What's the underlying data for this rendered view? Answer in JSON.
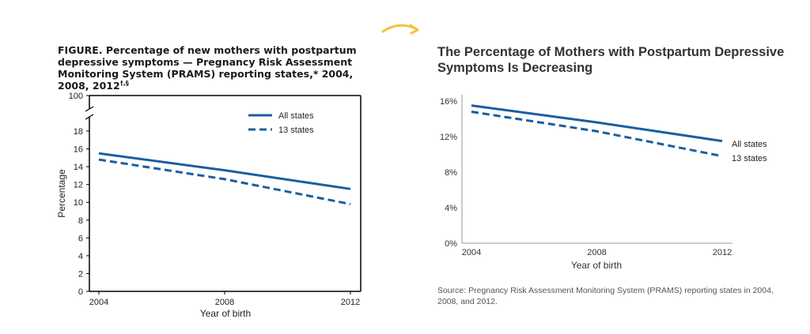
{
  "arrow_color": "#f5c242",
  "line_color": "#1a5fa0",
  "left": {
    "title_main": "FIGURE. Percentage of new mothers with postpartum depressive symptoms — Pregnancy Risk Assessment Monitoring System (PRAMS) reporting states,* 2004, 2008, 2012",
    "title_sup": "†,§",
    "ylabel": "Percentage",
    "xlabel": "Year of birth",
    "break_tick_label": "100",
    "y_tick_labels": [
      "0",
      "2",
      "4",
      "6",
      "8",
      "10",
      "12",
      "14",
      "16",
      "18"
    ],
    "x_tick_labels": [
      "2004",
      "2008",
      "2012"
    ],
    "legend": [
      "All states",
      "13 states"
    ]
  },
  "right": {
    "title": "The Percentage of Mothers with Postpartum Depressive Symptoms Is Decreasing",
    "xlabel": "Year of birth",
    "y_tick_labels": [
      "0%",
      "4%",
      "8%",
      "12%",
      "16%"
    ],
    "x_tick_labels": [
      "2004",
      "2008",
      "2012"
    ],
    "series_labels": [
      "All states",
      "13 states"
    ],
    "source": "Source: Pregnancy Risk Assessment Monitoring System (PRAMS) reporting states in 2004, 2008, and 2012."
  },
  "chart_data": [
    {
      "type": "line",
      "title": "FIGURE. Percentage of new mothers with postpartum depressive symptoms — Pregnancy Risk Assessment Monitoring System (PRAMS) reporting states,* 2004, 2008, 2012",
      "xlabel": "Year of birth",
      "ylabel": "Percentage",
      "x": [
        2004,
        2008,
        2012
      ],
      "ylim": [
        0,
        18
      ],
      "y_axis_break_top": 100,
      "legend_position": "top-right",
      "grid": false,
      "series": [
        {
          "name": "All states",
          "style": "solid",
          "values": [
            15.5,
            13.6,
            11.5
          ]
        },
        {
          "name": "13 states",
          "style": "dashed",
          "values": [
            14.8,
            12.6,
            9.8
          ]
        }
      ]
    },
    {
      "type": "line",
      "title": "The Percentage of Mothers with Postpartum Depressive Symptoms Is Decreasing",
      "xlabel": "Year of birth",
      "ylabel": "",
      "x": [
        2004,
        2008,
        2012
      ],
      "ylim": [
        0,
        16
      ],
      "y_unit": "%",
      "legend_position": "direct labels at line ends",
      "grid": false,
      "series": [
        {
          "name": "All states",
          "style": "solid",
          "values": [
            15.5,
            13.6,
            11.5
          ]
        },
        {
          "name": "13 states",
          "style": "dashed",
          "values": [
            14.8,
            12.6,
            9.8
          ]
        }
      ]
    }
  ]
}
